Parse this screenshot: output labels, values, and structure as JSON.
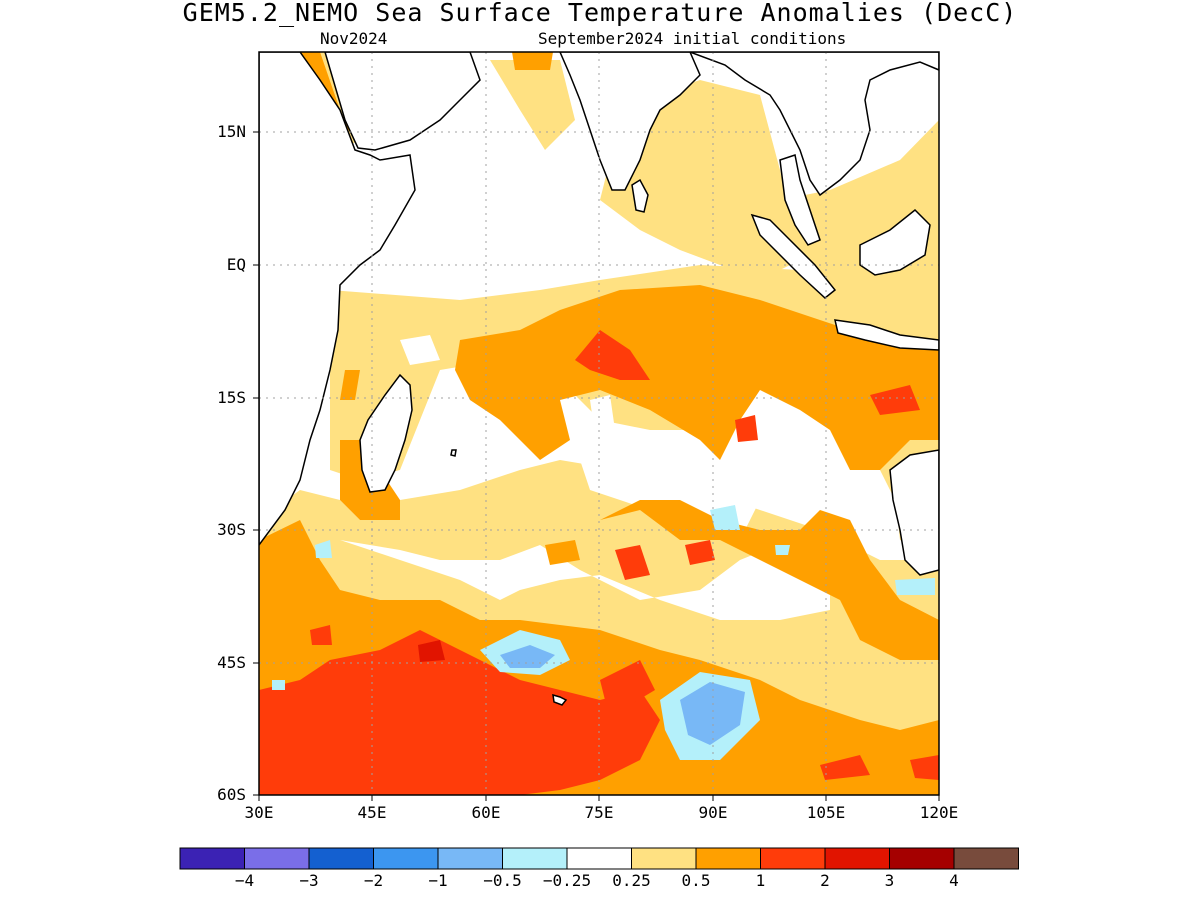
{
  "title": "GEM5.2_NEMO Sea Surface Temperature Anomalies (DecC)",
  "subtitle_month": "Nov2024",
  "subtitle_init": "September2024 initial conditions",
  "lat_labels": [
    "15N",
    "EQ",
    "15S",
    "30S",
    "45S",
    "60S"
  ],
  "lon_labels": [
    "30E",
    "45E",
    "60E",
    "75E",
    "90E",
    "105E",
    "120E"
  ],
  "colorbar": {
    "colors": [
      "#3b22b4",
      "#7a6ee8",
      "#1460d0",
      "#3c96f0",
      "#78b8f6",
      "#b4f0fa",
      "#ffffff",
      "#ffe182",
      "#ffa000",
      "#ff3c0a",
      "#e11400",
      "#a50000",
      "#784b3c"
    ],
    "labels": [
      "-4",
      "-3",
      "-2",
      "-1",
      "-0.5",
      "-0.25",
      "0.25",
      "0.5",
      "1",
      "2",
      "3",
      "4"
    ]
  },
  "chart_data": {
    "type": "heatmap",
    "title": "GEM5.2_NEMO Sea Surface Temperature Anomalies (DecC)",
    "subtitle": "Nov2024 — September2024 initial conditions",
    "xlabel": "",
    "ylabel": "",
    "xlim": [
      "30E",
      "120E"
    ],
    "ylim": [
      "60S",
      "24N"
    ],
    "x_ticks": [
      "30E",
      "45E",
      "60E",
      "75E",
      "90E",
      "105E",
      "120E"
    ],
    "y_ticks": [
      "15N",
      "EQ",
      "15S",
      "30S",
      "45S",
      "60S"
    ],
    "grid": true,
    "levels": [
      -4,
      -3,
      -2,
      -1,
      -0.5,
      -0.25,
      0.25,
      0.5,
      1,
      2,
      3,
      4
    ],
    "region": "Indian Ocean"
  }
}
